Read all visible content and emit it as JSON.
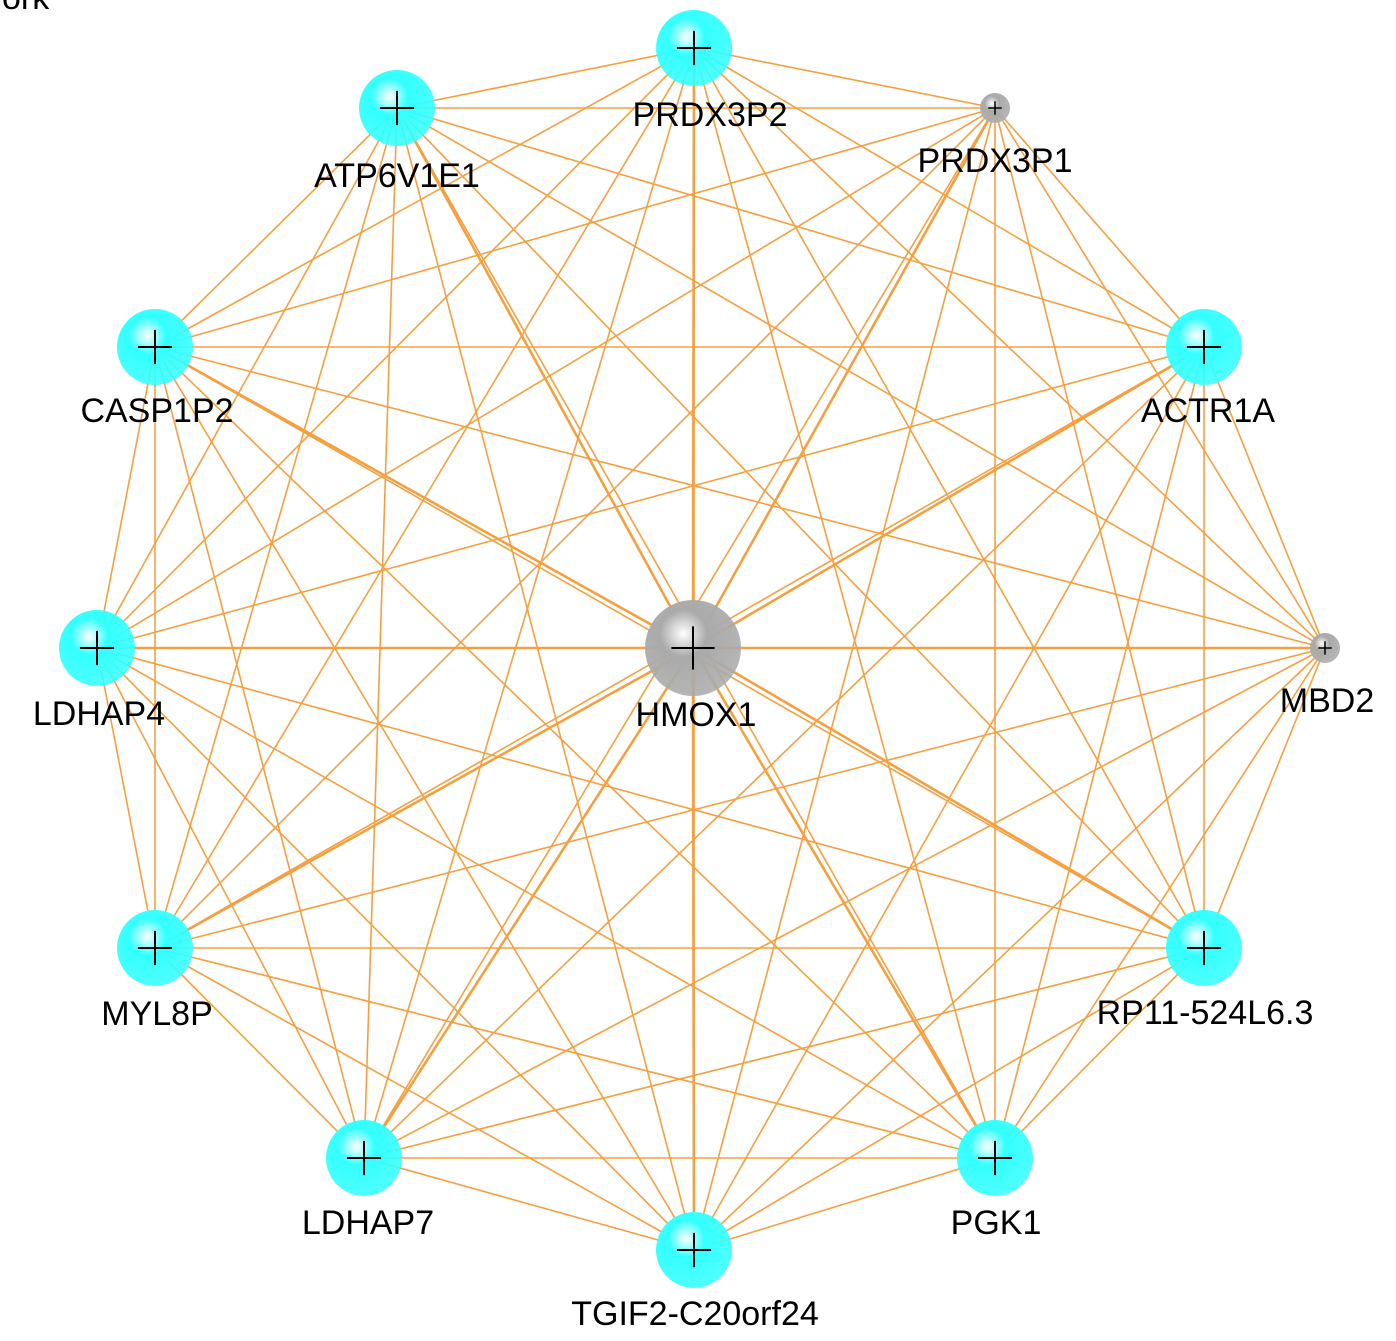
{
  "title": "ork",
  "nodes": [
    {
      "label": "PRDX3P2",
      "color": "#33ffff"
    },
    {
      "label": "PRDX3P1",
      "color": "#aaaaaa"
    },
    {
      "label": "ACTR1A",
      "color": "#33ffff"
    },
    {
      "label": "MBD2",
      "color": "#aaaaaa"
    },
    {
      "label": "RP11-524L6.3",
      "color": "#33ffff"
    },
    {
      "label": "PGK1",
      "color": "#33ffff"
    },
    {
      "label": "TGIF2-C20orf24",
      "color": "#33ffff"
    },
    {
      "label": "LDHAP7",
      "color": "#33ffff"
    },
    {
      "label": "MYL8P",
      "color": "#33ffff"
    },
    {
      "label": "LDHAP4",
      "color": "#33ffff"
    },
    {
      "label": "CASP1P2",
      "color": "#33ffff"
    },
    {
      "label": "ATP6V1E1",
      "color": "#33ffff"
    },
    {
      "label": "HMOX1",
      "color": "#aaaaaa"
    }
  ],
  "edge_color": "#f5a040"
}
